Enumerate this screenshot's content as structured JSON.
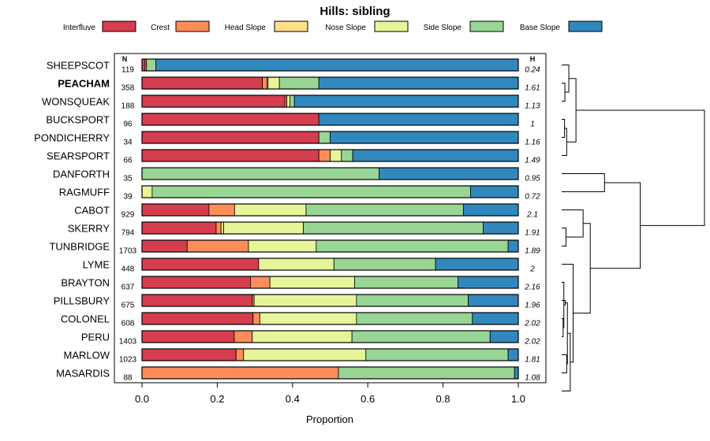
{
  "chart_data": {
    "type": "bar",
    "orientation": "horizontal",
    "stacked": true,
    "title": "Hills: sibling",
    "xlabel": "Proportion",
    "ylabel": "",
    "xlim": [
      0,
      1
    ],
    "xticks": [
      "0.0",
      "0.2",
      "0.4",
      "0.6",
      "0.8",
      "1.0"
    ],
    "n_header": "N",
    "h_header": "H",
    "legend_position": "top",
    "series": [
      {
        "name": "Interfluve",
        "color": "#d53e4f"
      },
      {
        "name": "Crest",
        "color": "#fc8d59"
      },
      {
        "name": "Head Slope",
        "color": "#fee08b"
      },
      {
        "name": "Nose Slope",
        "color": "#e6f598"
      },
      {
        "name": "Side Slope",
        "color": "#99d594"
      },
      {
        "name": "Base Slope",
        "color": "#3288bd"
      }
    ],
    "rows": [
      {
        "name": "SHEEPSCOT",
        "n": "119",
        "h": "0.24",
        "bold": false,
        "values": [
          0.008,
          0.004,
          0.0,
          0.0,
          0.025,
          0.963
        ]
      },
      {
        "name": "PEACHAM",
        "n": "358",
        "h": "1.61",
        "bold": true,
        "values": [
          0.32,
          0.012,
          0.003,
          0.03,
          0.105,
          0.53
        ]
      },
      {
        "name": "WONSQUEAK",
        "n": "188",
        "h": "1.13",
        "bold": false,
        "values": [
          0.38,
          0.005,
          0.0,
          0.008,
          0.012,
          0.595
        ]
      },
      {
        "name": "BUCKSPORT",
        "n": "96",
        "h": "1",
        "bold": false,
        "values": [
          0.47,
          0.0,
          0.0,
          0.0,
          0.0,
          0.53
        ]
      },
      {
        "name": "PONDICHERRY",
        "n": "34",
        "h": "1.16",
        "bold": false,
        "values": [
          0.47,
          0.0,
          0.0,
          0.0,
          0.03,
          0.5
        ]
      },
      {
        "name": "SEARSPORT",
        "n": "66",
        "h": "1.49",
        "bold": false,
        "values": [
          0.47,
          0.03,
          0.0,
          0.03,
          0.03,
          0.44
        ]
      },
      {
        "name": "DANFORTH",
        "n": "35",
        "h": "0.95",
        "bold": false,
        "values": [
          0.0,
          0.0,
          0.0,
          0.0,
          0.63,
          0.37
        ]
      },
      {
        "name": "RAGMUFF",
        "n": "39",
        "h": "0.72",
        "bold": false,
        "values": [
          0.0,
          0.0,
          0.0,
          0.027,
          0.846,
          0.127
        ]
      },
      {
        "name": "CABOT",
        "n": "929",
        "h": "2.1",
        "bold": false,
        "values": [
          0.178,
          0.068,
          0.0,
          0.19,
          0.418,
          0.146
        ]
      },
      {
        "name": "SKERRY",
        "n": "794",
        "h": "1.91",
        "bold": false,
        "values": [
          0.197,
          0.013,
          0.007,
          0.212,
          0.478,
          0.093
        ]
      },
      {
        "name": "TUNBRIDGE",
        "n": "1703",
        "h": "1.89",
        "bold": false,
        "values": [
          0.12,
          0.163,
          0.0,
          0.18,
          0.51,
          0.027
        ]
      },
      {
        "name": "LYME",
        "n": "448",
        "h": "2",
        "bold": false,
        "values": [
          0.31,
          0.0,
          0.0,
          0.2,
          0.27,
          0.22
        ]
      },
      {
        "name": "BRAYTON",
        "n": "637",
        "h": "2.16",
        "bold": false,
        "values": [
          0.288,
          0.052,
          0.0,
          0.225,
          0.275,
          0.16
        ]
      },
      {
        "name": "PILLSBURY",
        "n": "675",
        "h": "1.96",
        "bold": false,
        "values": [
          0.293,
          0.005,
          0.0,
          0.272,
          0.297,
          0.133
        ]
      },
      {
        "name": "COLONEL",
        "n": "608",
        "h": "2.02",
        "bold": false,
        "values": [
          0.295,
          0.018,
          0.0,
          0.257,
          0.308,
          0.122
        ]
      },
      {
        "name": "PERU",
        "n": "1403",
        "h": "2.02",
        "bold": false,
        "values": [
          0.245,
          0.048,
          0.0,
          0.265,
          0.367,
          0.075
        ]
      },
      {
        "name": "MARLOW",
        "n": "1023",
        "h": "1.81",
        "bold": false,
        "values": [
          0.25,
          0.02,
          0.0,
          0.325,
          0.378,
          0.027
        ]
      },
      {
        "name": "MASARDIS",
        "n": "88",
        "h": "1.08",
        "bold": false,
        "values": [
          0.0,
          0.522,
          0.0,
          0.0,
          0.468,
          0.01
        ]
      }
    ],
    "dendrogram": {
      "leaf_order": [
        "SHEEPSCOT",
        "PEACHAM",
        "WONSQUEAK",
        "BUCKSPORT",
        "PONDICHERRY",
        "SEARSPORT",
        "DANFORTH",
        "RAGMUFF",
        "CABOT",
        "SKERRY",
        "TUNBRIDGE",
        "LYME",
        "BRAYTON",
        "PILLSBURY",
        "COLONEL",
        "PERU",
        "MARLOW",
        "MASARDIS"
      ],
      "merges": [
        {
          "left": 14,
          "right": 15,
          "height": 0.02
        },
        {
          "left": 12,
          "right": -1,
          "height": 0.03
        },
        {
          "left": 3,
          "right": 4,
          "height": 0.04
        },
        {
          "left": 1,
          "right": 2,
          "height": 0.045
        },
        {
          "left": 13,
          "right": -2,
          "height": 0.05
        },
        {
          "left": 9,
          "right": 10,
          "height": 0.06
        },
        {
          "left": -3,
          "right": 5,
          "height": 0.07
        },
        {
          "left": 16,
          "right": 17,
          "height": 0.07
        },
        {
          "left": -5,
          "right": -8,
          "height": 0.08
        },
        {
          "left": 0,
          "right": -4,
          "height": 0.1
        },
        {
          "left": -9,
          "right": 18,
          "height": 0.12
        },
        {
          "left": 11,
          "right": -11,
          "height": 0.16
        },
        {
          "left": -10,
          "right": -7,
          "height": 0.2
        },
        {
          "left": 8,
          "right": -6,
          "height": 0.3
        },
        {
          "left": -14,
          "right": -12,
          "height": 0.4
        },
        {
          "left": 6,
          "right": 7,
          "height": 0.6
        },
        {
          "left": -16,
          "right": -15,
          "height": 1.1
        },
        {
          "left": -13,
          "right": -17,
          "height": 2.0
        }
      ]
    }
  }
}
